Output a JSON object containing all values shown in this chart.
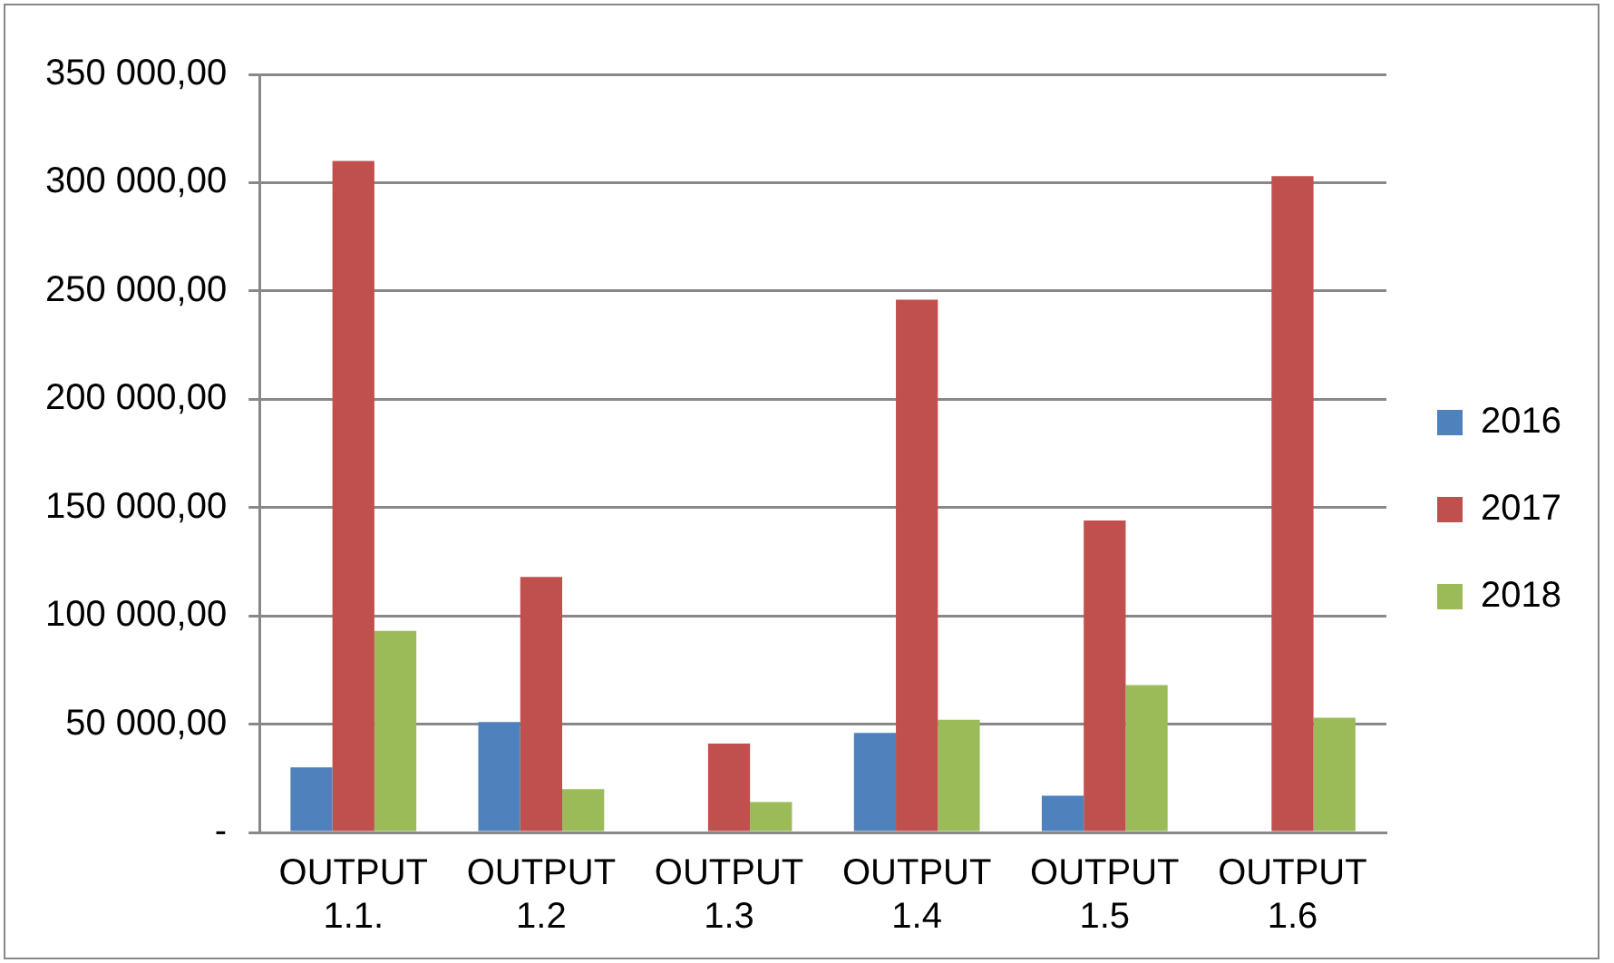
{
  "chart_data": {
    "type": "bar",
    "categories": [
      "OUTPUT 1.1.",
      "OUTPUT 1.2",
      "OUTPUT 1.3",
      "OUTPUT 1.4",
      "OUTPUT 1.5",
      "OUTPUT 1.6"
    ],
    "series": [
      {
        "name": "2016",
        "color": "#4f81bd",
        "values": [
          30000,
          51000,
          null,
          46000,
          17000,
          null
        ]
      },
      {
        "name": "2017",
        "color": "#c0504d",
        "values": [
          310000,
          118000,
          41000,
          246000,
          144000,
          303000
        ]
      },
      {
        "name": "2018",
        "color": "#9bbb59",
        "values": [
          93000,
          20000,
          14000,
          52000,
          68000,
          53000
        ]
      }
    ],
    "ylim": [
      0,
      350000
    ],
    "yticks": [
      {
        "value": 0,
        "label": "-"
      },
      {
        "value": 50000,
        "label": "50 000,00"
      },
      {
        "value": 100000,
        "label": "100 000,00"
      },
      {
        "value": 150000,
        "label": "150 000,00"
      },
      {
        "value": 200000,
        "label": "200 000,00"
      },
      {
        "value": 250000,
        "label": "250 000,00"
      },
      {
        "value": 300000,
        "label": "300 000,00"
      },
      {
        "value": 350000,
        "label": "350 000,00"
      }
    ],
    "grid": "y",
    "legend": "right"
  }
}
